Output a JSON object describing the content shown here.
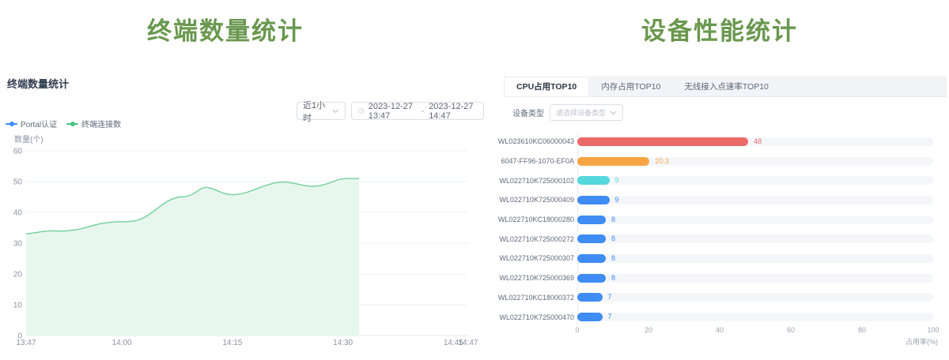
{
  "left": {
    "page_title": "终端数量统计",
    "panel_title": "终端数量统计",
    "controls": {
      "range_select_value": "近1小时",
      "date_start": "2023-12-27 13:47",
      "date_separator": "-",
      "date_end": "2023-12-27 14:47"
    },
    "legend": [
      {
        "label": "Portal认证",
        "color": "#3e8ef7"
      },
      {
        "label": "终端连接数",
        "color": "#45c783"
      }
    ]
  },
  "right": {
    "page_title": "设备性能统计",
    "tabs": [
      {
        "label": "CPU占用TOP10",
        "active": true
      },
      {
        "label": "内存占用TOP10",
        "active": false
      },
      {
        "label": "无线接入点速率TOP10",
        "active": false
      }
    ],
    "filter": {
      "label": "设备类型",
      "placeholder": "请选择设备类型"
    }
  },
  "chart_data": [
    {
      "type": "area",
      "title": "终端数量统计",
      "ylabel": "数量(个)",
      "ylim": [
        0,
        60
      ],
      "y_ticks": [
        0,
        10,
        20,
        30,
        40,
        50,
        60
      ],
      "x_tick_labels": [
        "13:47",
        "14:00",
        "14:15",
        "14:30",
        "14:45",
        "14:47"
      ],
      "x_tick_minutes": [
        0,
        13,
        28,
        43,
        58,
        60
      ],
      "x_total_minutes": 60,
      "grid": true,
      "legend_position": "top-left",
      "series": [
        {
          "name": "Portal认证",
          "color": "#3e8ef7",
          "points": []
        },
        {
          "name": "终端连接数",
          "color": "#45c783",
          "line_color": "#7ad2a0",
          "area_color": "#e8f7ee",
          "points": [
            [
              0,
              33
            ],
            [
              1,
              33.3
            ],
            [
              2,
              33.7
            ],
            [
              3,
              34
            ],
            [
              4,
              34
            ],
            [
              5,
              33.9
            ],
            [
              6,
              34.1
            ],
            [
              7,
              34.4
            ],
            [
              8,
              35
            ],
            [
              9,
              35.7
            ],
            [
              10,
              36.3
            ],
            [
              11,
              36.7
            ],
            [
              12,
              36.9
            ],
            [
              13,
              37
            ],
            [
              14,
              37
            ],
            [
              15,
              37.3
            ],
            [
              16,
              38.2
            ],
            [
              17,
              39.8
            ],
            [
              18,
              41.6
            ],
            [
              19,
              43.4
            ],
            [
              20,
              44.6
            ],
            [
              21,
              45.1
            ],
            [
              22,
              45.2
            ],
            [
              23,
              46.4
            ],
            [
              24,
              48.2
            ],
            [
              25,
              48
            ],
            [
              26,
              47
            ],
            [
              27,
              46
            ],
            [
              28,
              45.7
            ],
            [
              29,
              45.9
            ],
            [
              30,
              46.5
            ],
            [
              31,
              47.4
            ],
            [
              32,
              48.3
            ],
            [
              33,
              49.1
            ],
            [
              34,
              49.7
            ],
            [
              35,
              49.9
            ],
            [
              36,
              49.6
            ],
            [
              37,
              49.1
            ],
            [
              38,
              48.6
            ],
            [
              39,
              48.4
            ],
            [
              40,
              48.7
            ],
            [
              41,
              49.4
            ],
            [
              42,
              50.3
            ],
            [
              43,
              51
            ],
            [
              44,
              51
            ],
            [
              45,
              51
            ],
            [
              45.2,
              51
            ]
          ]
        }
      ]
    },
    {
      "type": "bar",
      "orientation": "horizontal",
      "title": "CPU占用TOP10",
      "xlabel": "占用率(%)",
      "xlim": [
        0,
        100
      ],
      "x_ticks": [
        0,
        20,
        40,
        60,
        80,
        100
      ],
      "categories": [
        "WL023610KC06000043",
        "6047-FF96-1070-EF0A",
        "WL022710K725000102",
        "WL022710K725000409",
        "WL022710KC18000280",
        "WL022710K725000272",
        "WL022710K725000307",
        "WL022710K725000369",
        "WL022710KC18000372",
        "WL022710K725000470"
      ],
      "values": [
        48,
        20.3,
        9,
        9,
        8,
        8,
        8,
        8,
        7,
        7
      ],
      "bar_colors": [
        "#ea6a6a",
        "#f7a543",
        "#55d8dc",
        "#3e8cf4",
        "#3e8cf4",
        "#3e8cf4",
        "#3e8cf4",
        "#3e8cf4",
        "#3e8cf4",
        "#3e8cf4"
      ],
      "track_color": "#f4f6fa"
    }
  ]
}
